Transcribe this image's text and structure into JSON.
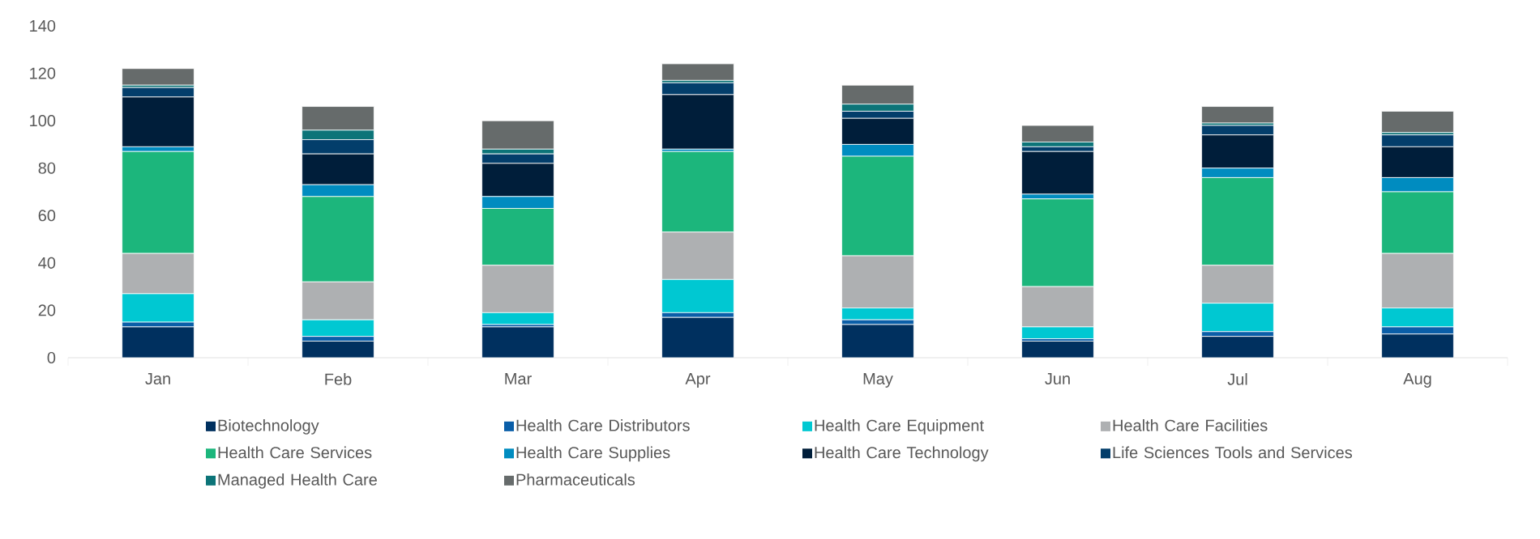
{
  "chart_data": {
    "type": "bar",
    "stacked": true,
    "legend": "bottom",
    "categories": [
      "Jan",
      "Feb",
      "Mar",
      "Apr",
      "May",
      "Jun",
      "Jul",
      "Aug"
    ],
    "ylim": [
      0,
      140
    ],
    "yticks": [
      0,
      20,
      40,
      60,
      80,
      100,
      120,
      140
    ],
    "series": [
      {
        "name": "Biotechnology",
        "color": "#00305f",
        "values": [
          13,
          7,
          13,
          17,
          14,
          7,
          9,
          10
        ]
      },
      {
        "name": "Health Care Distributors",
        "color": "#0a5ea8",
        "values": [
          2,
          2,
          1,
          2,
          2,
          1,
          2,
          3
        ]
      },
      {
        "name": "Health Care Equipment",
        "color": "#00c8d2",
        "values": [
          12,
          7,
          5,
          14,
          5,
          5,
          12,
          8
        ]
      },
      {
        "name": "Health Care Facilities",
        "color": "#aeb0b2",
        "values": [
          17,
          16,
          20,
          20,
          22,
          17,
          16,
          23
        ]
      },
      {
        "name": "Health Care Services",
        "color": "#1cb67c",
        "values": [
          43,
          36,
          24,
          34,
          42,
          37,
          37,
          26
        ]
      },
      {
        "name": "Health Care Supplies",
        "color": "#008cc0",
        "values": [
          2,
          5,
          5,
          1,
          5,
          2,
          4,
          6
        ]
      },
      {
        "name": "Health Care Technology",
        "color": "#001e3a",
        "values": [
          21,
          13,
          14,
          23,
          11,
          18,
          14,
          13
        ]
      },
      {
        "name": "Life Sciences Tools and Services",
        "color": "#033e6b",
        "values": [
          4,
          6,
          4,
          5,
          3,
          2,
          4,
          5
        ]
      },
      {
        "name": "Managed Health Care",
        "color": "#0c7478",
        "values": [
          1,
          4,
          2,
          1,
          3,
          2,
          1,
          1
        ]
      },
      {
        "name": "Pharmaceuticals",
        "color": "#666b6b",
        "values": [
          7,
          10,
          12,
          7,
          8,
          7,
          7,
          9
        ]
      }
    ]
  }
}
